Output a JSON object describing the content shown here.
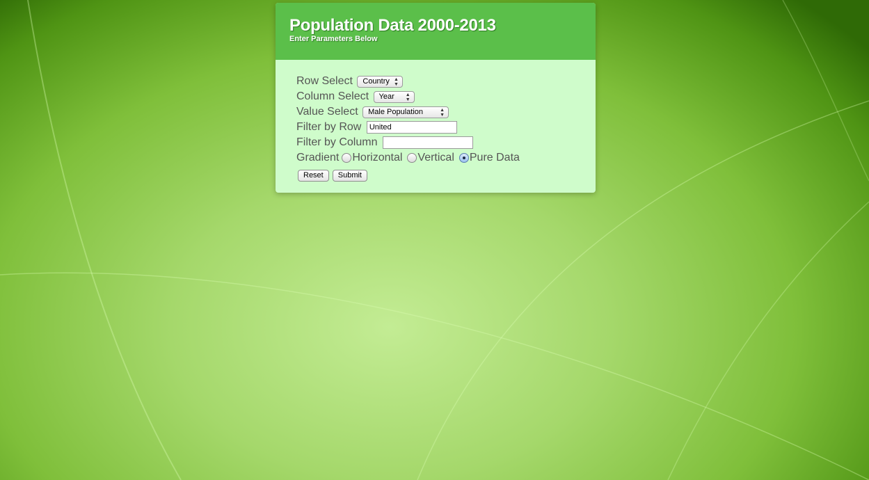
{
  "header": {
    "title": "Population Data 2000-2013",
    "subtitle": "Enter Parameters Below"
  },
  "form": {
    "row_select": {
      "label": "Row Select",
      "value": "Country"
    },
    "column_select": {
      "label": "Column Select",
      "value": "Year"
    },
    "value_select": {
      "label": "Value Select",
      "value": "Male Population"
    },
    "filter_row": {
      "label": "Filter by Row",
      "value": "United"
    },
    "filter_column": {
      "label": "Filter by Column",
      "value": ""
    },
    "gradient": {
      "label": "Gradient",
      "options": [
        "Horizontal",
        "Vertical",
        "Pure Data"
      ],
      "selected": "Pure Data"
    },
    "reset_label": "Reset",
    "submit_label": "Submit"
  },
  "icons": {
    "select_arrows": "updown-arrows-icon"
  },
  "colors": {
    "header_bg": "#5bbf4a",
    "panel_bg": "#cffccb",
    "label_text": "#555555"
  }
}
